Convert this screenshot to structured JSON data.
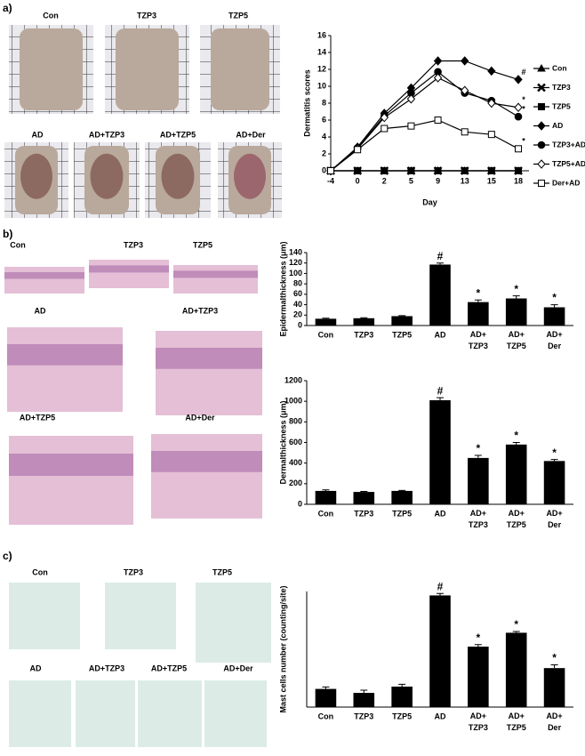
{
  "panel_labels": [
    "a)",
    "b)",
    "c)"
  ],
  "photos": {
    "a": [
      "Con",
      "TZP3",
      "TZP5",
      "AD",
      "AD+TZP3",
      "AD+TZP5",
      "AD+Der"
    ],
    "b": [
      "Con",
      "TZP3",
      "TZP5",
      "AD",
      "AD+TZP3",
      "AD+TZP5",
      "AD+Der"
    ],
    "c": [
      "Con",
      "TZP3",
      "TZP5",
      "AD",
      "AD+TZP3",
      "AD+TZP5",
      "AD+Der"
    ]
  },
  "chart_data": [
    {
      "type": "line",
      "xlabel": "Day",
      "ylabel": "Dermatitis scores",
      "categories": [
        "-4",
        "0",
        "2",
        "5",
        "9",
        "13",
        "15",
        "18"
      ],
      "ylim": [
        0,
        16
      ],
      "yticks": [
        0,
        2,
        4,
        6,
        8,
        10,
        12,
        14,
        16
      ],
      "series": [
        {
          "name": "Con",
          "color": "#000000",
          "marker": "triangle",
          "values": [
            0,
            0,
            0,
            0,
            0,
            0,
            0,
            0
          ]
        },
        {
          "name": "TZP3",
          "color": "#000000",
          "marker": "cross",
          "values": [
            0,
            0,
            0,
            0,
            0,
            0,
            0,
            0
          ]
        },
        {
          "name": "TZP5",
          "color": "#000000",
          "marker": "square",
          "values": [
            0,
            0,
            0,
            0,
            0,
            0,
            0,
            0
          ]
        },
        {
          "name": "AD",
          "color": "#000000",
          "marker": "diamond",
          "values": [
            0,
            2.8,
            6.8,
            9.8,
            13.0,
            13.0,
            11.8,
            10.8
          ],
          "significance": [
            null,
            null,
            null,
            null,
            null,
            null,
            null,
            "#"
          ]
        },
        {
          "name": "TZP3+AD",
          "color": "#000000",
          "marker": "circle",
          "values": [
            0,
            2.7,
            6.5,
            9.2,
            11.7,
            9.2,
            8.3,
            6.4
          ],
          "significance": [
            null,
            null,
            null,
            null,
            null,
            null,
            null,
            "*"
          ]
        },
        {
          "name": "TZP5+AD",
          "color": "#000000",
          "marker": "open-diamond",
          "values": [
            0,
            2.6,
            6.3,
            8.5,
            11.0,
            9.5,
            8.0,
            7.5
          ],
          "significance": [
            null,
            null,
            null,
            null,
            null,
            null,
            null,
            "*"
          ]
        },
        {
          "name": "Der+AD",
          "color": "#000000",
          "marker": "open-square",
          "values": [
            0,
            2.5,
            5.0,
            5.3,
            6.0,
            4.6,
            4.3,
            2.6
          ],
          "significance": [
            null,
            null,
            null,
            null,
            null,
            null,
            null,
            "*"
          ]
        }
      ]
    },
    {
      "type": "bar",
      "ylabel": "Epidermalthickness (μm)",
      "color": "#000000",
      "categories": [
        "Con",
        "TZP3",
        "TZP5",
        "AD",
        "AD+\nTZP3",
        "AD+\nTZP5",
        "AD+\nDer"
      ],
      "values": [
        13,
        14,
        18,
        117,
        45,
        52,
        35
      ],
      "errors": [
        1,
        1,
        1,
        3,
        4,
        5,
        5
      ],
      "significance": [
        null,
        null,
        null,
        "#",
        "*",
        "*",
        "*"
      ],
      "ylim": [
        0,
        140
      ],
      "yticks": [
        0,
        20,
        40,
        60,
        80,
        100,
        120,
        140
      ]
    },
    {
      "type": "bar",
      "ylabel": "Dermalthickness (μm)",
      "color": "#000000",
      "categories": [
        "Con",
        "TZP3",
        "TZP5",
        "AD",
        "AD+\nTZP3",
        "AD+\nTZP5",
        "AD+\nDer"
      ],
      "values": [
        130,
        120,
        130,
        1010,
        450,
        580,
        420
      ],
      "errors": [
        10,
        5,
        5,
        25,
        25,
        20,
        15
      ],
      "significance": [
        null,
        null,
        null,
        "#",
        "*",
        "*",
        "*"
      ],
      "ylim": [
        0,
        1200
      ],
      "yticks": [
        0,
        200,
        400,
        600,
        800,
        1000,
        1200
      ]
    },
    {
      "type": "bar",
      "ylabel": "Mast cells number (counting/site)",
      "color": "#000000",
      "categories": [
        "Con",
        "TZP3",
        "TZP5",
        "AD",
        "AD+\nTZP3",
        "AD+\nTZP5",
        "AD+\nDer"
      ],
      "values": [
        55,
        43,
        62,
        338,
        183,
        225,
        118
      ],
      "errors": [
        6,
        8,
        7,
        6,
        6,
        4,
        10
      ],
      "significance": [
        null,
        null,
        null,
        "#",
        "*",
        "*",
        "*"
      ],
      "ylim": [
        0,
        350
      ]
    }
  ]
}
